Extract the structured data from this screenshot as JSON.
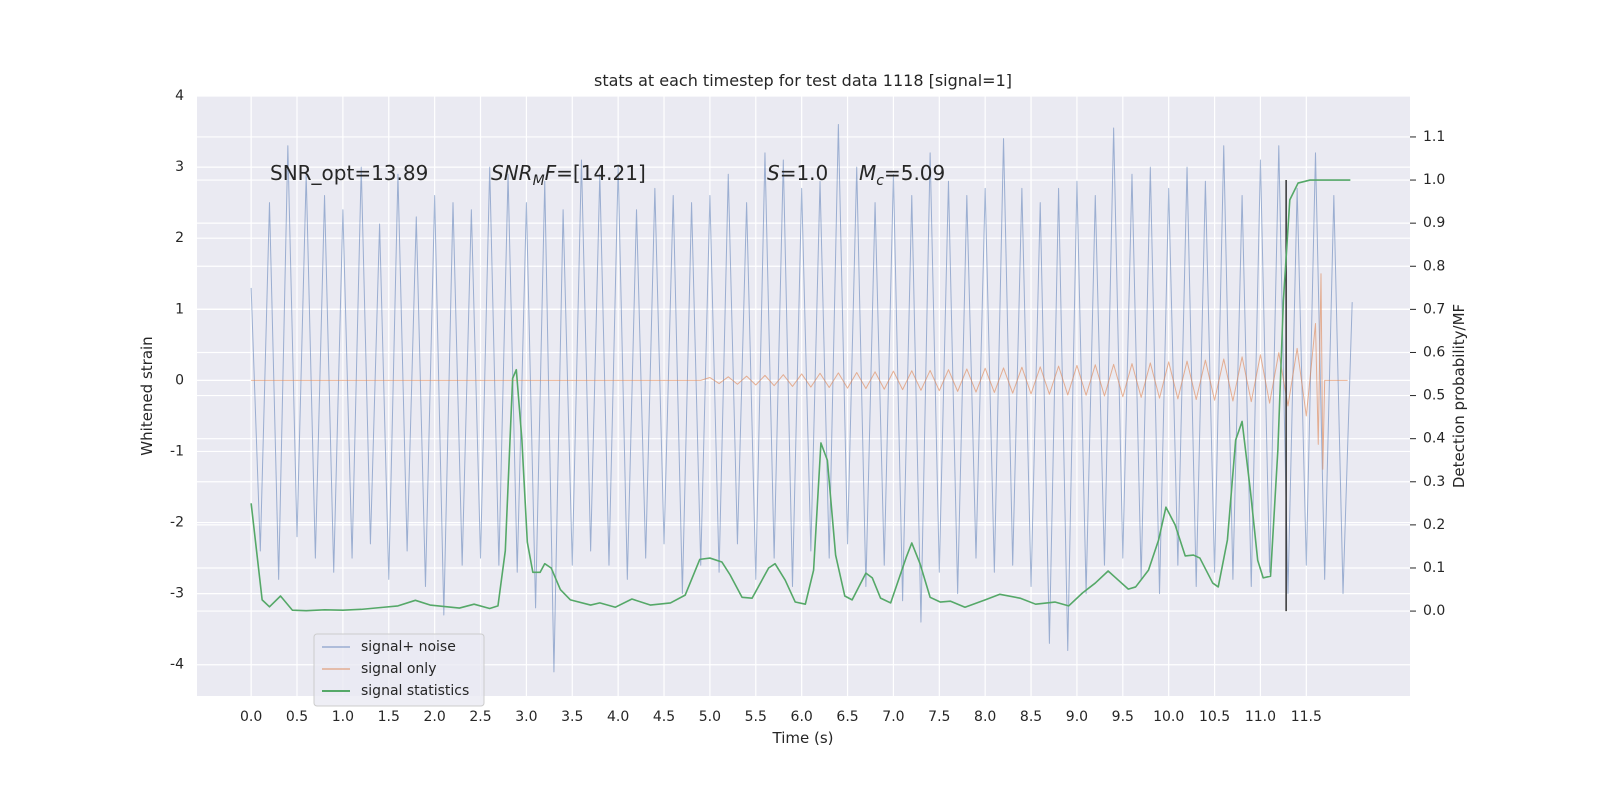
{
  "chart_data": {
    "type": "line",
    "title": "stats at each timestep for test data 1118 [signal=1]",
    "xlabel": "Time (s)",
    "ylabel": "Whitened strain",
    "y2label": "Detection probability/MF",
    "xlim": [
      -0.59,
      12.63
    ],
    "ylim": [
      -4.44,
      4.0
    ],
    "y2lim": [
      -0.197,
      1.195
    ],
    "xticks": [
      {
        "value": 0,
        "label": "0.0"
      },
      0.5,
      {
        "value": 1,
        "label": "1.0"
      },
      1.5,
      {
        "value": 2,
        "label": "2.0"
      },
      2.5,
      {
        "value": 3,
        "label": "3.0"
      },
      3.5,
      {
        "value": 4,
        "label": "4.0"
      },
      4.5,
      {
        "value": 5,
        "label": "5.0"
      },
      5.5,
      {
        "value": 6,
        "label": "6.0"
      },
      6.5,
      {
        "value": 7,
        "label": "7.0"
      },
      7.5,
      {
        "value": 8,
        "label": "8.0"
      },
      8.5,
      {
        "value": 9,
        "label": "9.0"
      },
      9.5,
      {
        "value": 10,
        "label": "10.0"
      },
      10.5,
      {
        "value": 11,
        "label": "11.0"
      },
      11.5
    ],
    "yticks": [
      -4,
      -3,
      -2,
      -1,
      0,
      1,
      2,
      3,
      4
    ],
    "y2ticks": [
      {
        "value": 0,
        "label": "0.0"
      },
      0.1,
      0.2,
      0.3,
      0.4,
      0.5,
      0.6,
      0.7,
      0.8,
      0.9,
      {
        "value": 1,
        "label": "1.0"
      },
      1.1
    ],
    "grid": true,
    "annotations": [
      [
        {
          "text": "SNR_opt=13.89"
        }
      ],
      [
        {
          "text": "SNR",
          "italic": true
        },
        {
          "text": "M",
          "italic": true,
          "sub": true
        },
        {
          "text": "F",
          "italic": true
        },
        {
          "text": "=[14.21]"
        }
      ],
      [
        {
          "text": "S",
          "italic": true
        },
        {
          "text": "=1.0"
        }
      ],
      [
        {
          "text": "M",
          "italic": true
        },
        {
          "text": "c",
          "italic": true,
          "sub": true
        },
        {
          "text": "=5.09"
        }
      ]
    ],
    "vline": {
      "x": 11.28,
      "y2": [
        0,
        1
      ],
      "color": "#333333"
    },
    "series": [
      {
        "name": "signal+ noise",
        "color": "#4c72b0",
        "axis": "y",
        "x": [
          0.0,
          0.1,
          0.2,
          0.3,
          0.4,
          0.5,
          0.6,
          0.7,
          0.8,
          0.9,
          1.0,
          1.1,
          1.2,
          1.3,
          1.4,
          1.5,
          1.6,
          1.7,
          1.8,
          1.9,
          2.0,
          2.1,
          2.2,
          2.3,
          2.4,
          2.5,
          2.6,
          2.7,
          2.8,
          2.9,
          3.0,
          3.1,
          3.2,
          3.3,
          3.4,
          3.5,
          3.6,
          3.7,
          3.8,
          3.9,
          4.0,
          4.1,
          4.2,
          4.3,
          4.4,
          4.5,
          4.6,
          4.7,
          4.8,
          4.9,
          5.0,
          5.1,
          5.2,
          5.3,
          5.4,
          5.5,
          5.6,
          5.7,
          5.8,
          5.9,
          6.0,
          6.1,
          6.2,
          6.3,
          6.4,
          6.5,
          6.6,
          6.7,
          6.8,
          6.9,
          7.0,
          7.1,
          7.2,
          7.3,
          7.4,
          7.5,
          7.6,
          7.7,
          7.8,
          7.9,
          8.0,
          8.1,
          8.2,
          8.3,
          8.4,
          8.5,
          8.6,
          8.7,
          8.8,
          8.9,
          9.0,
          9.1,
          9.2,
          9.3,
          9.4,
          9.5,
          9.6,
          9.7,
          9.8,
          9.9,
          10.0,
          10.1,
          10.2,
          10.3,
          10.4,
          10.5,
          10.6,
          10.7,
          10.8,
          10.9,
          11.0,
          11.1,
          11.2,
          11.3,
          11.4,
          11.5,
          11.6,
          11.7,
          11.8,
          11.9,
          12.0
        ],
        "values": [
          1.3,
          -2.4,
          2.5,
          -2.8,
          3.3,
          -2.2,
          2.9,
          -2.5,
          2.6,
          -2.7,
          2.4,
          -2.5,
          3.0,
          -2.3,
          2.2,
          -2.8,
          2.9,
          -2.4,
          2.3,
          -2.9,
          2.6,
          -3.3,
          2.5,
          -2.6,
          2.4,
          -2.5,
          3.0,
          -2.6,
          2.9,
          -2.7,
          2.5,
          -3.2,
          2.8,
          -4.1,
          2.4,
          -2.6,
          3.1,
          -2.4,
          2.9,
          -2.6,
          3.0,
          -2.8,
          2.4,
          -2.5,
          2.7,
          -2.3,
          2.6,
          -3.0,
          2.5,
          -2.6,
          2.6,
          -2.7,
          2.9,
          -2.3,
          2.5,
          -2.8,
          3.2,
          -2.5,
          3.1,
          -2.9,
          2.7,
          -2.4,
          2.8,
          -2.5,
          3.6,
          -2.3,
          3.0,
          -2.9,
          2.5,
          -2.6,
          2.9,
          -3.1,
          2.6,
          -3.4,
          3.2,
          -2.7,
          2.8,
          -3.0,
          2.6,
          -2.5,
          2.7,
          -2.7,
          3.4,
          -2.6,
          2.7,
          -2.9,
          2.5,
          -3.7,
          2.7,
          -3.8,
          2.8,
          -3.0,
          2.6,
          -2.6,
          3.55,
          -2.5,
          2.9,
          -2.8,
          3.0,
          -3.0,
          2.7,
          -2.6,
          3.0,
          -2.9,
          2.8,
          -2.7,
          3.3,
          -2.8,
          2.6,
          -2.9,
          3.1,
          -2.7,
          3.3,
          -3.0,
          2.7,
          -2.6,
          3.2,
          -2.8,
          2.6,
          -3.0,
          1.1
        ]
      },
      {
        "name": "signal only",
        "color": "#dd8452",
        "axis": "y",
        "x": [
          0.0,
          4.9,
          5.0,
          5.1,
          5.2,
          5.3,
          5.4,
          5.5,
          5.6,
          5.7,
          5.8,
          5.9,
          6.0,
          6.1,
          6.2,
          6.3,
          6.4,
          6.5,
          6.6,
          6.7,
          6.8,
          6.9,
          7.0,
          7.1,
          7.2,
          7.3,
          7.4,
          7.5,
          7.6,
          7.7,
          7.8,
          7.9,
          8.0,
          8.1,
          8.2,
          8.3,
          8.4,
          8.5,
          8.6,
          8.7,
          8.8,
          8.9,
          9.0,
          9.1,
          9.2,
          9.3,
          9.4,
          9.5,
          9.6,
          9.7,
          9.8,
          9.9,
          10.0,
          10.1,
          10.2,
          10.3,
          10.4,
          10.5,
          10.6,
          10.7,
          10.8,
          10.9,
          11.0,
          11.1,
          11.2,
          11.3,
          11.4,
          11.5,
          11.6,
          11.63,
          11.66,
          11.68,
          11.7,
          11.95
        ],
        "values": [
          0,
          0,
          0.04,
          -0.045,
          0.05,
          -0.055,
          0.06,
          -0.065,
          0.07,
          -0.075,
          0.08,
          -0.085,
          0.09,
          -0.095,
          0.1,
          -0.1,
          0.105,
          -0.11,
          0.11,
          -0.115,
          0.12,
          -0.125,
          0.13,
          -0.13,
          0.135,
          -0.14,
          0.14,
          -0.145,
          0.15,
          -0.155,
          0.16,
          -0.165,
          0.17,
          -0.17,
          0.175,
          -0.18,
          0.185,
          -0.19,
          0.19,
          -0.195,
          0.2,
          -0.205,
          0.21,
          -0.21,
          0.22,
          -0.22,
          0.225,
          -0.23,
          0.235,
          -0.24,
          0.245,
          -0.25,
          0.26,
          -0.26,
          0.27,
          -0.27,
          0.285,
          -0.28,
          0.3,
          -0.29,
          0.33,
          -0.3,
          0.36,
          -0.32,
          0.39,
          -0.36,
          0.45,
          -0.5,
          0.8,
          -0.9,
          1.5,
          -1.25,
          0,
          0
        ]
      },
      {
        "name": "signal statistics",
        "color": "#55a868",
        "axis": "y2",
        "x": [
          0.0,
          0.12,
          0.2,
          0.32,
          0.45,
          0.6,
          0.8,
          1.0,
          1.2,
          1.4,
          1.6,
          1.79,
          1.95,
          2.27,
          2.43,
          2.6,
          2.69,
          2.77,
          2.85,
          2.89,
          2.95,
          3.01,
          3.07,
          3.15,
          3.2,
          3.27,
          3.37,
          3.48,
          3.7,
          3.8,
          3.97,
          4.15,
          4.35,
          4.57,
          4.73,
          4.89,
          5.0,
          5.13,
          5.22,
          5.35,
          5.46,
          5.64,
          5.71,
          5.82,
          5.93,
          6.04,
          6.13,
          6.21,
          6.28,
          6.37,
          6.47,
          6.55,
          6.7,
          6.77,
          6.86,
          6.97,
          7.14,
          7.2,
          7.29,
          7.4,
          7.51,
          7.62,
          7.78,
          8.0,
          8.16,
          8.38,
          8.55,
          8.76,
          8.91,
          9.06,
          9.2,
          9.34,
          9.45,
          9.56,
          9.64,
          9.78,
          9.89,
          9.97,
          10.07,
          10.18,
          10.27,
          10.34,
          10.48,
          10.54,
          10.64,
          10.73,
          10.8,
          10.89,
          10.97,
          11.03,
          11.11,
          11.19,
          11.25,
          11.32,
          11.41,
          11.54,
          11.98
        ],
        "values": [
          0.25,
          0.026,
          0.01,
          0.035,
          0.002,
          0.001,
          0.003,
          0.002,
          0.004,
          0.008,
          0.012,
          0.025,
          0.014,
          0.007,
          0.016,
          0.006,
          0.012,
          0.14,
          0.54,
          0.56,
          0.4,
          0.16,
          0.09,
          0.09,
          0.11,
          0.1,
          0.05,
          0.026,
          0.014,
          0.019,
          0.009,
          0.028,
          0.014,
          0.019,
          0.037,
          0.12,
          0.123,
          0.114,
          0.084,
          0.032,
          0.03,
          0.1,
          0.11,
          0.072,
          0.021,
          0.016,
          0.095,
          0.39,
          0.35,
          0.13,
          0.035,
          0.026,
          0.088,
          0.077,
          0.03,
          0.019,
          0.125,
          0.158,
          0.11,
          0.032,
          0.021,
          0.023,
          0.009,
          0.026,
          0.039,
          0.03,
          0.016,
          0.021,
          0.012,
          0.042,
          0.065,
          0.093,
          0.072,
          0.051,
          0.056,
          0.095,
          0.165,
          0.241,
          0.2,
          0.128,
          0.13,
          0.123,
          0.065,
          0.056,
          0.165,
          0.397,
          0.44,
          0.28,
          0.118,
          0.077,
          0.081,
          0.374,
          0.72,
          0.954,
          0.993,
          1.0,
          1.0
        ]
      }
    ]
  }
}
